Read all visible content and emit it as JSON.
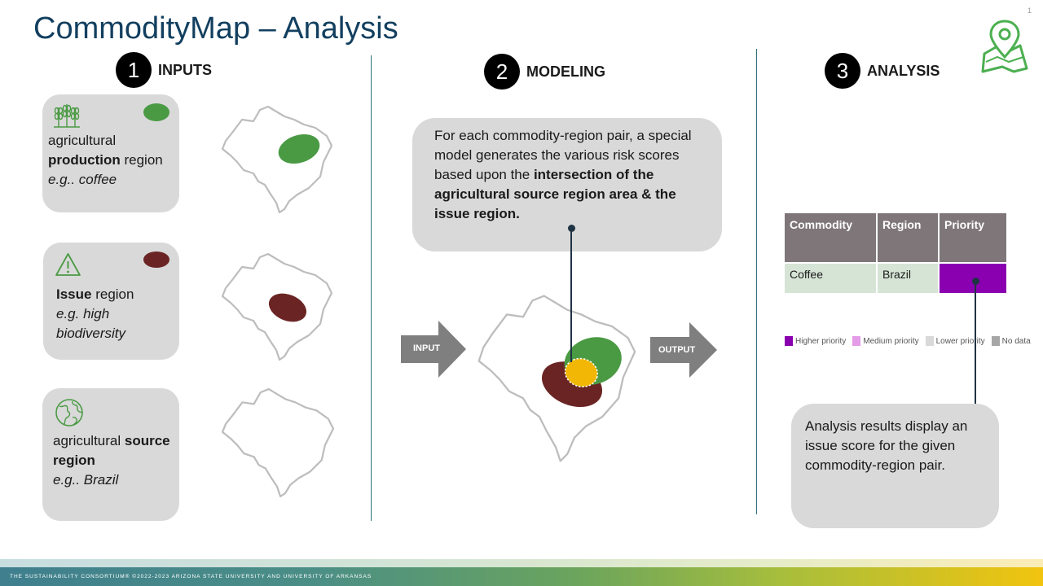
{
  "page": {
    "title": "CommodityMap – Analysis",
    "page_number": "1"
  },
  "logo": {
    "icon": "map-pin-icon",
    "color": "#4caf50"
  },
  "steps": [
    {
      "number": "1",
      "label": "INPUTS"
    },
    {
      "number": "2",
      "label": "MODELING"
    },
    {
      "number": "3",
      "label": "ANALYSIS"
    }
  ],
  "inputs": {
    "production": {
      "icon": "wheat-icon",
      "dot_color": "#4a9a44",
      "line1": "agricultural",
      "bold": "production",
      "rest": " region",
      "example": "e.g.. coffee"
    },
    "issue": {
      "icon": "warning-icon",
      "dot_color": "#6b2424",
      "bold": "Issue",
      "rest": " region",
      "example_line1": "e.g. high",
      "example_line2": "biodiversity"
    },
    "source": {
      "icon": "globe-icon",
      "line1": "agricultural ",
      "bold1": "source",
      "bold2": "region",
      "example": "e.g.. Brazil"
    }
  },
  "modeling": {
    "callout_plain": "For each commodity-region pair, a special model generates the various risk scores based upon the ",
    "callout_bold": "intersection of the agricultural source region area & the issue region.",
    "input_label": "INPUT",
    "output_label": "OUTPUT",
    "colors": {
      "production": "#4a9a44",
      "issue": "#6b2424",
      "intersection": "#f2b705"
    }
  },
  "analysis": {
    "table": {
      "headers": [
        "Commodity",
        "Region",
        "Priority"
      ],
      "rows": [
        {
          "commodity": "Coffee",
          "region": "Brazil",
          "priority_color": "#8a00b0"
        }
      ]
    },
    "legend": [
      {
        "label": "Higher priority",
        "color": "#8a00b0"
      },
      {
        "label": "Medium priority",
        "color": "#e49be8"
      },
      {
        "label": "Lower priority",
        "color": "#d9d9d9"
      },
      {
        "label": "No data",
        "color": "#a6a6a6"
      }
    ],
    "callout": "Analysis results display an issue score for the given commodity-region pair."
  },
  "footer": {
    "text": "THE SUSTAINABILITY CONSORTIUM®  ©2022-2023 ARIZONA STATE UNIVERSITY AND UNIVERSITY OF ARKANSAS"
  }
}
